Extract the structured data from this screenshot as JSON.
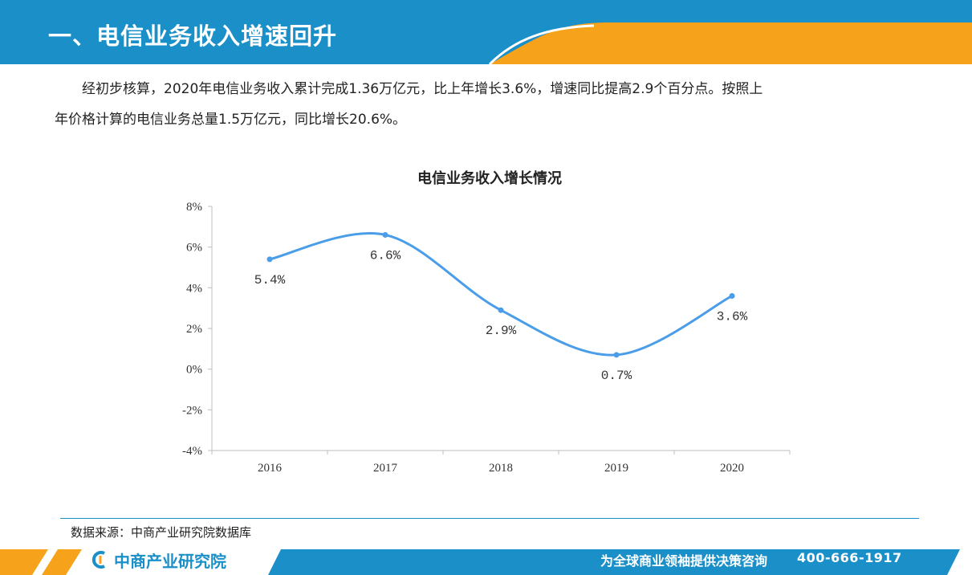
{
  "header": {
    "title": "一、电信业务收入增速回升"
  },
  "intro": {
    "line1": "经初步核算，2020年电信业务收入累计完成1.36万亿元，比上年增长3.6%，增速同比提高2.9个百分点。按照上",
    "line2": "年价格计算的电信业务总量1.5万亿元，同比增长20.6%。"
  },
  "chart_data": {
    "type": "line",
    "title": "电信业务收入增长情况",
    "categories": [
      "2016",
      "2017",
      "2018",
      "2019",
      "2020"
    ],
    "values": [
      5.4,
      6.6,
      2.9,
      0.7,
      3.6
    ],
    "data_labels": [
      "5.4%",
      "6.6%",
      "2.9%",
      "0.7%",
      "3.6%"
    ],
    "ylim": [
      -4,
      8
    ],
    "yticks": [
      "8%",
      "6%",
      "4%",
      "2%",
      "0%",
      "-2%",
      "-4%"
    ],
    "ytick_values": [
      8,
      6,
      4,
      2,
      0,
      -2,
      -4
    ],
    "line_color": "#4a9de8",
    "smooth": true,
    "grid": false
  },
  "source": "数据来源：中商产业研究院数据库",
  "footer": {
    "brand": "中商产业研究院",
    "slogan": "为全球商业领袖提供决策咨询",
    "phone": "400-666-1917"
  },
  "colors": {
    "primary": "#1b8fc7",
    "accent": "#f7a21b"
  }
}
